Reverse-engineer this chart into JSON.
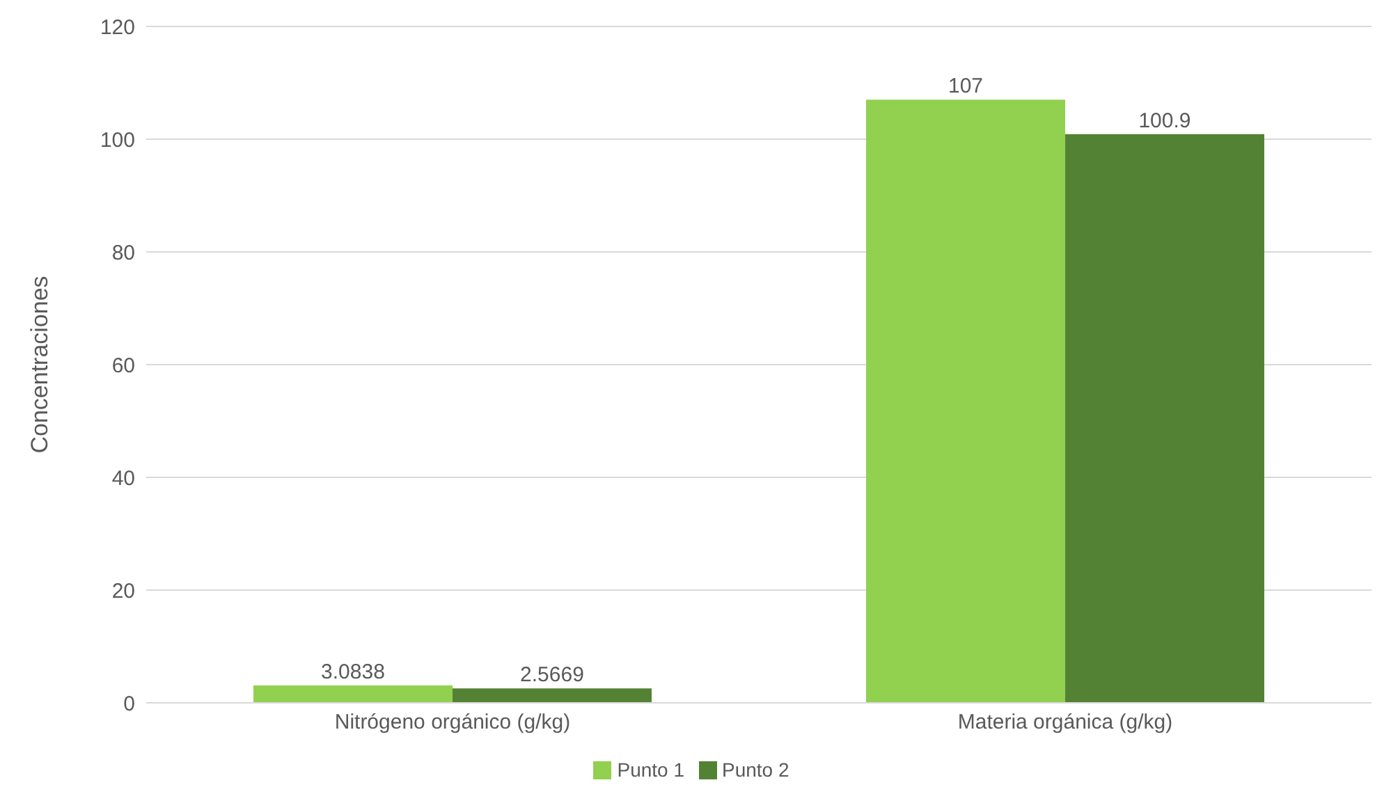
{
  "chart_data": {
    "type": "bar",
    "ylabel": "Concentraciones",
    "categories": [
      "Nitrógeno orgánico (g/kg)",
      "Materia orgánica (g/kg)"
    ],
    "series": [
      {
        "name": "Punto 1",
        "color": "#92d050",
        "values": [
          3.0838,
          107
        ]
      },
      {
        "name": "Punto 2",
        "color": "#548235",
        "values": [
          2.5669,
          100.9
        ]
      }
    ],
    "ylim": [
      0,
      120
    ],
    "yticks": [
      0,
      20,
      40,
      60,
      80,
      100,
      120
    ],
    "grid": "y",
    "legend": "bottom",
    "data_labels": true
  }
}
